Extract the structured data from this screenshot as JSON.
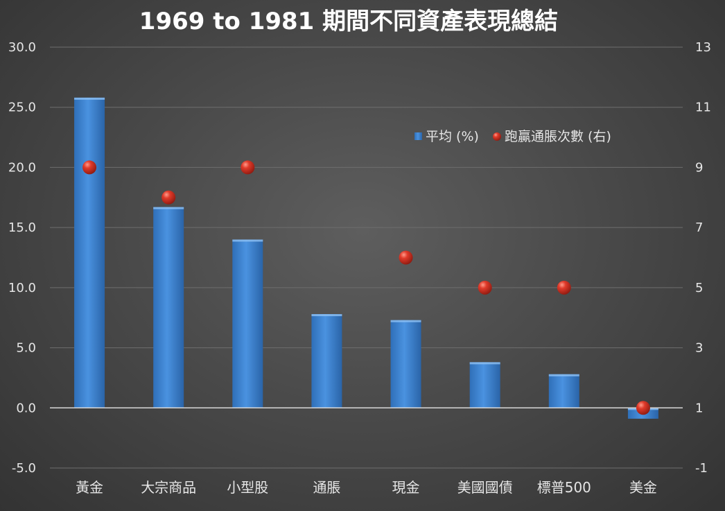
{
  "chart_data": {
    "type": "bar",
    "title": "1969 to 1981 期間不同資產表現總結",
    "categories": [
      "黃金",
      "大宗商品",
      "小型股",
      "通脹",
      "現金",
      "美國國債",
      "標普500",
      "美金"
    ],
    "series": [
      {
        "name": "平均 (%)",
        "type": "bar",
        "axis": "left",
        "color": "#3f86d6",
        "values": [
          25.8,
          16.7,
          14.0,
          7.8,
          7.3,
          3.8,
          2.8,
          -0.9
        ]
      },
      {
        "name": "跑贏通脹次數 (右)",
        "type": "scatter",
        "axis": "right",
        "color": "#d93a2a",
        "values": [
          9,
          8,
          9,
          null,
          6,
          5,
          5,
          1
        ]
      }
    ],
    "y_left": {
      "min": -5,
      "max": 30,
      "ticks": [
        "30.0",
        "25.0",
        "20.0",
        "15.0",
        "10.0",
        "5.0",
        "0.0",
        "-5.0"
      ]
    },
    "y_right": {
      "min": -1,
      "max": 13,
      "ticks": [
        "13",
        "11",
        "9",
        "7",
        "5",
        "3",
        "1",
        "-1"
      ]
    },
    "grid": true,
    "legend_position": "top-right"
  }
}
